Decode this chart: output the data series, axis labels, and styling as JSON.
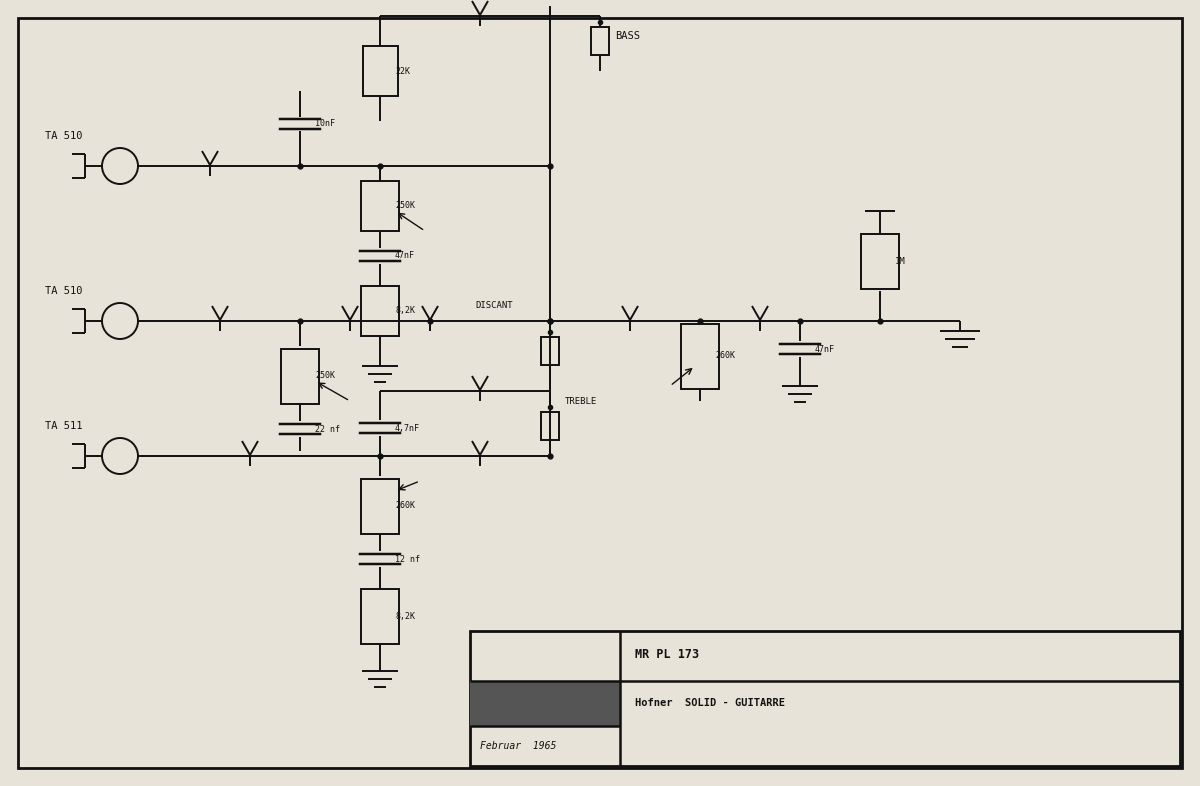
{
  "bg_color": "#e8e3d8",
  "line_color": "#111111",
  "title_text1": "MR PL 173",
  "title_text2": "Hofner  SOLID - GUITARRE",
  "title_text3": "Februar  1965",
  "label_TA510_top": "TA 510",
  "label_TA510_mid": "TA 510",
  "label_TA511_bot": "TA 511",
  "label_BASS": "BASS",
  "label_DISCANT": "DISCANT",
  "label_TREBLE": "TREBLE",
  "label_22K": "22K",
  "label_10nF": "10nF",
  "label_250K_top": "250K",
  "label_47nF_top": "47nF",
  "label_82K_top": "8,2K",
  "label_250K_mid": "250K",
  "label_22nF": "22 nf",
  "label_47nF_bot": "4,7nF",
  "label_260K_bot": "260K",
  "label_12nF": "12 nf",
  "label_82K_bot": "8,2K",
  "label_260K_right": "260K",
  "label_47nF_right": "47nF",
  "label_1M": "1M"
}
